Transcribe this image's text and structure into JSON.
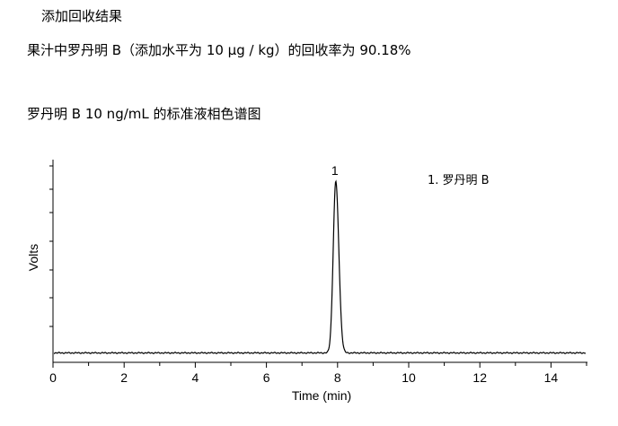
{
  "heading": "添加回收结果",
  "recovery_text": "果汁中罗丹明 B（添加水平为 10 μg / kg）的回收率为 90.18%",
  "chromatogram_title": "罗丹明 B 10 ng/mL 的标准液相色谱图",
  "chart_data": {
    "type": "line",
    "xlabel": "Time (min)",
    "ylabel": "Volts",
    "xlim": [
      0,
      15
    ],
    "x_ticks": [
      0,
      2,
      4,
      6,
      8,
      10,
      12,
      14
    ],
    "x_tick_labels": [
      "0",
      "2",
      "4",
      "6",
      "8",
      "10",
      "12",
      "14"
    ],
    "grid": false,
    "peaks": [
      {
        "label": "1",
        "retention_time": 7.95,
        "relative_height": 0.93
      }
    ],
    "legend": [
      "1.  罗丹明 B"
    ],
    "legend_position": "top-right",
    "line_color": "#000000"
  }
}
